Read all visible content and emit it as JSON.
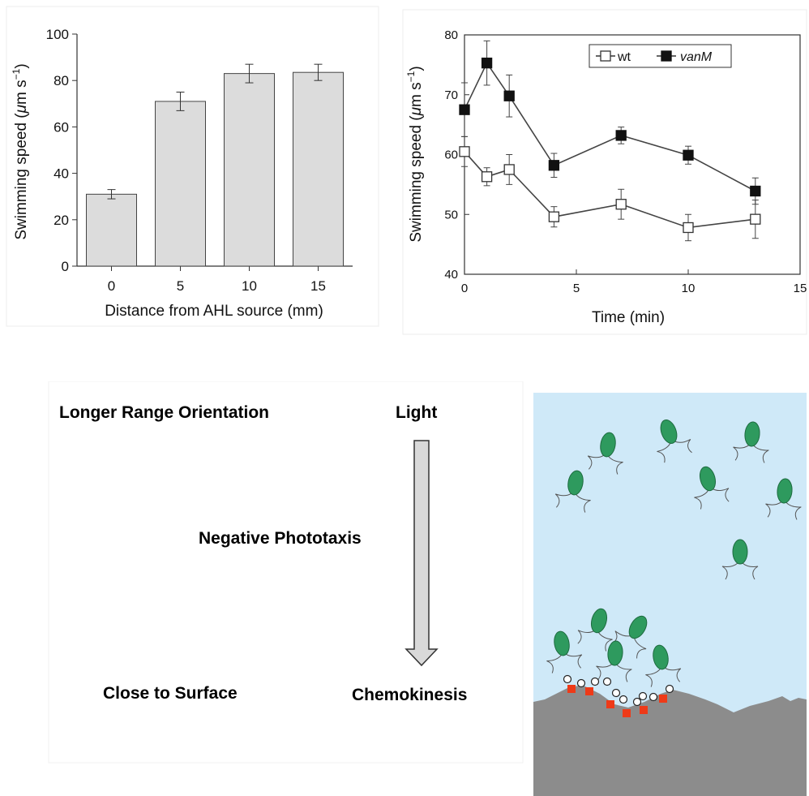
{
  "chart_data": [
    {
      "type": "bar",
      "xlabel": "Distance from AHL source (mm)",
      "ylabel_prefix": "Swimming speed (",
      "ylabel_mu": "μ",
      "ylabel_unit": "m s",
      "ylabel_exp": "−1",
      "ylabel_suffix": ")",
      "categories": [
        "0",
        "5",
        "10",
        "15"
      ],
      "values": [
        31,
        71,
        83,
        83.5
      ],
      "errors": [
        2,
        4,
        4,
        3.5
      ],
      "ylim": [
        0,
        100
      ],
      "yticks": [
        0,
        20,
        40,
        60,
        80,
        100
      ],
      "bar_color": "#dcdcdc",
      "grid": false
    },
    {
      "type": "line",
      "xlabel": "Time (min)",
      "ylabel_prefix": "Swimming speed (",
      "ylabel_mu": "μ",
      "ylabel_unit": "m s",
      "ylabel_exp": "−1",
      "ylabel_suffix": ")",
      "xlim": [
        0,
        15
      ],
      "ylim": [
        40,
        80
      ],
      "xticks": [
        0,
        5,
        10,
        15
      ],
      "yticks": [
        40,
        50,
        60,
        70,
        80
      ],
      "legend_position": "top-right",
      "series": [
        {
          "name": "wt",
          "marker": "open-square",
          "x": [
            0,
            1,
            2,
            4,
            7,
            10,
            13
          ],
          "y": [
            60.5,
            56.3,
            57.5,
            49.6,
            51.7,
            47.8,
            49.2
          ],
          "errors": [
            2.5,
            1.5,
            2.5,
            1.7,
            2.5,
            2.2,
            3.2
          ]
        },
        {
          "name": "vanM",
          "marker": "filled-square",
          "x": [
            0,
            1,
            2,
            4,
            7,
            10,
            13
          ],
          "y": [
            67.5,
            75.3,
            69.8,
            58.2,
            63.2,
            59.9,
            53.9
          ],
          "errors": [
            4.5,
            3.7,
            3.5,
            2,
            1.4,
            1.5,
            2.2
          ]
        }
      ]
    }
  ],
  "diagram": {
    "label_longer_range": "Longer Range Orientation",
    "label_light": "Light",
    "label_negative_phototaxis": "Negative Phototaxis",
    "label_close_to_surface": "Close to Surface",
    "label_chemokinesis": "Chemokinesis",
    "colors": {
      "water": "#cfe9f8",
      "surface": "#8c8c8c",
      "cell": "#2e9a5e",
      "chemo_square": "#ee3a18",
      "arrow_fill": "#d9d9d9"
    }
  }
}
